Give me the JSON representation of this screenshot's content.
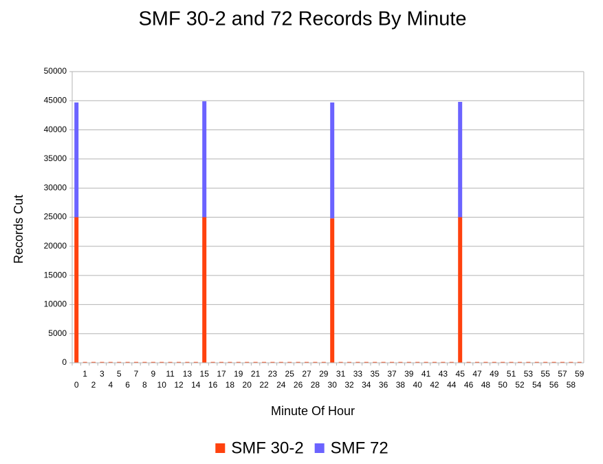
{
  "chart_data": {
    "type": "stacked-bar",
    "title": "SMF 30-2 and 72 Records By Minute",
    "x_label": "Minute Of Hour",
    "y_label": "Records Cut",
    "categories": [
      "0",
      "1",
      "2",
      "3",
      "4",
      "5",
      "6",
      "7",
      "8",
      "9",
      "10",
      "11",
      "12",
      "13",
      "14",
      "15",
      "16",
      "17",
      "18",
      "19",
      "20",
      "21",
      "22",
      "23",
      "24",
      "25",
      "26",
      "27",
      "28",
      "29",
      "30",
      "31",
      "32",
      "33",
      "34",
      "35",
      "36",
      "37",
      "38",
      "39",
      "40",
      "41",
      "42",
      "43",
      "44",
      "45",
      "46",
      "47",
      "48",
      "49",
      "50",
      "51",
      "52",
      "53",
      "54",
      "55",
      "56",
      "57",
      "58",
      "59"
    ],
    "series": [
      {
        "name": "SMF 30-2",
        "color": "#ff420e",
        "values": [
          25000,
          150,
          150,
          150,
          150,
          150,
          150,
          150,
          150,
          150,
          150,
          150,
          150,
          150,
          150,
          25000,
          150,
          150,
          150,
          150,
          150,
          150,
          150,
          150,
          150,
          150,
          150,
          150,
          150,
          150,
          24800,
          150,
          150,
          150,
          150,
          150,
          150,
          150,
          150,
          150,
          150,
          150,
          150,
          150,
          150,
          25000,
          150,
          150,
          150,
          150,
          150,
          150,
          150,
          150,
          150,
          150,
          150,
          150,
          150,
          150
        ]
      },
      {
        "name": "SMF 72",
        "color": "#6b63ff",
        "values": [
          19700,
          0,
          0,
          0,
          0,
          0,
          0,
          0,
          0,
          0,
          0,
          0,
          0,
          0,
          0,
          19900,
          0,
          0,
          0,
          0,
          0,
          0,
          0,
          0,
          0,
          0,
          0,
          0,
          0,
          0,
          19900,
          0,
          0,
          0,
          0,
          0,
          0,
          0,
          0,
          0,
          0,
          0,
          0,
          0,
          0,
          19800,
          0,
          0,
          0,
          0,
          0,
          0,
          0,
          0,
          0,
          0,
          0,
          0,
          0,
          0
        ]
      }
    ],
    "ylim": [
      0,
      50000
    ],
    "yticks": [
      0,
      5000,
      10000,
      15000,
      20000,
      25000,
      30000,
      35000,
      40000,
      45000,
      50000
    ],
    "grid": true,
    "legend": "bottom"
  }
}
